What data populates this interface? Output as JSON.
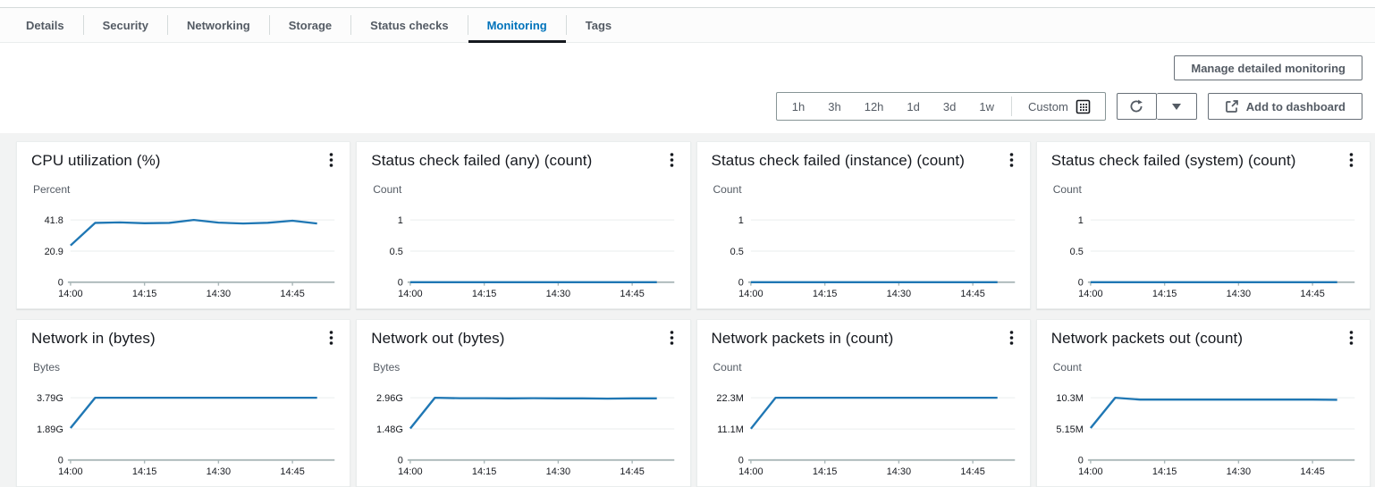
{
  "tabs": {
    "items": [
      {
        "label": "Details"
      },
      {
        "label": "Security"
      },
      {
        "label": "Networking"
      },
      {
        "label": "Storage"
      },
      {
        "label": "Status checks"
      },
      {
        "label": "Monitoring"
      },
      {
        "label": "Tags"
      }
    ],
    "active": "Monitoring"
  },
  "toolbar": {
    "manage_button_label": "Manage detailed monitoring",
    "time_ranges": [
      "1h",
      "3h",
      "12h",
      "1d",
      "3d",
      "1w"
    ],
    "custom_label": "Custom",
    "add_to_dashboard_label": "Add to dashboard"
  },
  "colors": {
    "accent": "#0073bb",
    "line": "#1f77b4",
    "grid": "#eaeded",
    "axis": "#aab7b8",
    "text_dark": "#16191f",
    "text_gray": "#545b64"
  },
  "x_axis": {
    "tick_labels": [
      "14:00",
      "14:15",
      "14:30",
      "14:45"
    ],
    "tick_minutes": [
      0,
      15,
      30,
      45
    ],
    "domain_minutes": [
      0,
      53
    ],
    "point_minutes": [
      0,
      5,
      10,
      15,
      20,
      25,
      30,
      35,
      40,
      45,
      50
    ]
  },
  "charts": [
    {
      "type": "line",
      "title": "CPU utilization (%)",
      "unit": "Percent",
      "y_tick_labels": [
        "41.8",
        "20.9",
        "0"
      ],
      "y_tick_values": [
        41.8,
        20.9,
        0
      ],
      "values": [
        24.7,
        39.8,
        40.2,
        39.6,
        39.8,
        41.8,
        40.0,
        39.4,
        39.9,
        41.3,
        39.4
      ]
    },
    {
      "type": "line",
      "title": "Status check failed (any) (count)",
      "unit": "Count",
      "y_tick_labels": [
        "1",
        "0.5",
        "0"
      ],
      "y_tick_values": [
        1,
        0.5,
        0
      ],
      "values": [
        0,
        0,
        0,
        0,
        0,
        0,
        0,
        0,
        0,
        0,
        0
      ]
    },
    {
      "type": "line",
      "title": "Status check failed (instance) (count)",
      "unit": "Count",
      "y_tick_labels": [
        "1",
        "0.5",
        "0"
      ],
      "y_tick_values": [
        1,
        0.5,
        0
      ],
      "values": [
        0,
        0,
        0,
        0,
        0,
        0,
        0,
        0,
        0,
        0,
        0
      ]
    },
    {
      "type": "line",
      "title": "Status check failed (system) (count)",
      "unit": "Count",
      "y_tick_labels": [
        "1",
        "0.5",
        "0"
      ],
      "y_tick_values": [
        1,
        0.5,
        0
      ],
      "values": [
        0,
        0,
        0,
        0,
        0,
        0,
        0,
        0,
        0,
        0,
        0
      ]
    },
    {
      "type": "line",
      "title": "Network in (bytes)",
      "unit": "Bytes",
      "y_tick_labels": [
        "3.79G",
        "1.89G",
        "0"
      ],
      "y_tick_values": [
        3.79,
        1.89,
        0
      ],
      "values": [
        1.95,
        3.79,
        3.79,
        3.79,
        3.79,
        3.79,
        3.79,
        3.79,
        3.79,
        3.79,
        3.79
      ]
    },
    {
      "type": "line",
      "title": "Network out (bytes)",
      "unit": "Bytes",
      "y_tick_labels": [
        "2.96G",
        "1.48G",
        "0"
      ],
      "y_tick_values": [
        2.96,
        1.48,
        0
      ],
      "values": [
        1.5,
        2.96,
        2.94,
        2.94,
        2.93,
        2.94,
        2.93,
        2.93,
        2.92,
        2.93,
        2.93
      ]
    },
    {
      "type": "line",
      "title": "Network packets in (count)",
      "unit": "Count",
      "y_tick_labels": [
        "22.3M",
        "11.1M",
        "0"
      ],
      "y_tick_values": [
        22.3,
        11.1,
        0
      ],
      "values": [
        11.2,
        22.3,
        22.3,
        22.3,
        22.3,
        22.3,
        22.3,
        22.3,
        22.3,
        22.3,
        22.3
      ]
    },
    {
      "type": "line",
      "title": "Network packets out (count)",
      "unit": "Count",
      "y_tick_labels": [
        "10.3M",
        "5.15M",
        "0"
      ],
      "y_tick_values": [
        10.3,
        5.15,
        0
      ],
      "values": [
        5.3,
        10.3,
        10.0,
        10.0,
        10.0,
        10.0,
        10.0,
        10.0,
        10.0,
        10.0,
        9.95
      ]
    }
  ]
}
